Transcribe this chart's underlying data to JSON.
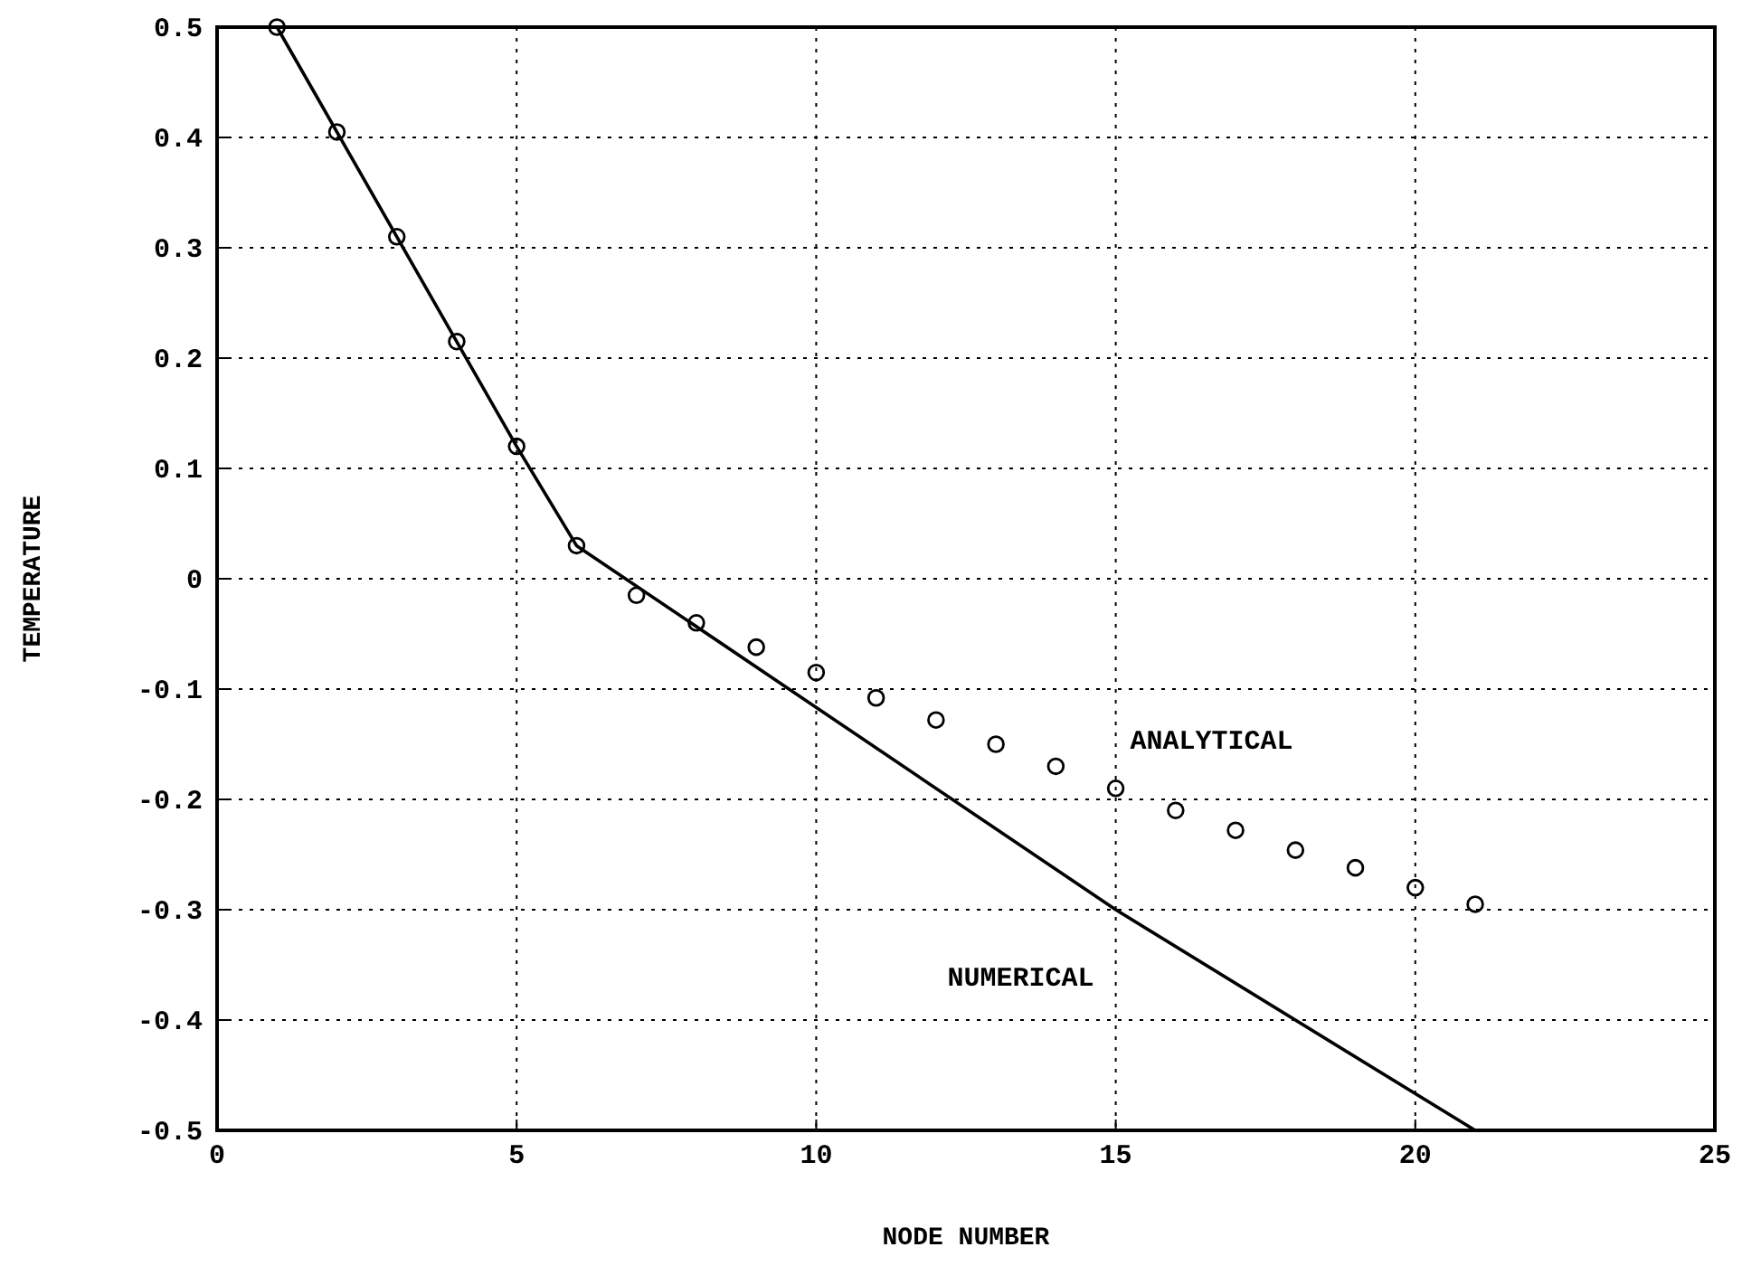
{
  "chart_data": {
    "type": "line",
    "xlabel": "NODE NUMBER",
    "ylabel": "TEMPERATURE",
    "xlim": [
      0,
      25
    ],
    "ylim": [
      -0.5,
      0.5
    ],
    "xticks": [
      0,
      5,
      10,
      15,
      20,
      25
    ],
    "yticks": [
      -0.5,
      -0.4,
      -0.3,
      -0.2,
      -0.1,
      0,
      0.1,
      0.2,
      0.3,
      0.4,
      0.5
    ],
    "grid": true,
    "series": [
      {
        "name": "ANALYTICAL",
        "type": "scatter",
        "marker": "circle",
        "color": "#000000",
        "x": [
          1,
          2,
          3,
          4,
          5,
          6,
          7,
          8,
          9,
          10,
          11,
          12,
          13,
          14,
          15,
          16,
          17,
          18,
          19,
          20,
          21
        ],
        "values": [
          0.5,
          0.405,
          0.31,
          0.215,
          0.12,
          0.03,
          -0.015,
          -0.04,
          -0.062,
          -0.085,
          -0.108,
          -0.128,
          -0.15,
          -0.17,
          -0.19,
          -0.21,
          -0.228,
          -0.246,
          -0.262,
          -0.28,
          -0.295
        ]
      },
      {
        "name": "NUMERICAL",
        "marker": "none",
        "line_style": "solid",
        "color": "#000000",
        "x": [
          1,
          5,
          6,
          15,
          21
        ],
        "values": [
          0.5,
          0.12,
          0.03,
          -0.3,
          -0.5
        ]
      }
    ]
  }
}
